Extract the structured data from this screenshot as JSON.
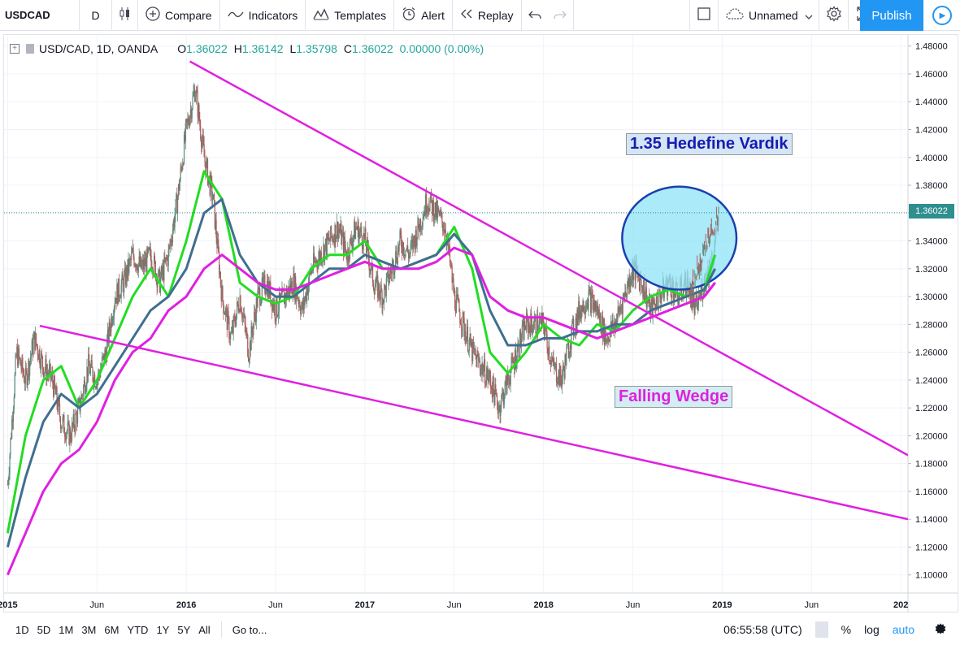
{
  "toolbar": {
    "symbol": "USDCAD",
    "interval": "D",
    "compare": "Compare",
    "indicators": "Indicators",
    "templates": "Templates",
    "alert": "Alert",
    "replay": "Replay",
    "layout_name": "Unnamed",
    "publish": "Publish"
  },
  "legend": {
    "symbol": "USD/CAD, 1D, OANDA",
    "open_label": "O",
    "open": "1.36022",
    "high_label": "H",
    "high": "1.36142",
    "low_label": "L",
    "low": "1.35798",
    "close_label": "C",
    "close": "1.36022",
    "change": "0.00000 (0.00%)"
  },
  "price_label": "1.36022",
  "annotations": {
    "target": "1.35 Hedefine Vardık",
    "pattern": "Falling Wedge"
  },
  "bottom": {
    "ranges": [
      "1D",
      "5D",
      "1M",
      "3M",
      "6M",
      "YTD",
      "1Y",
      "5Y",
      "All"
    ],
    "goto": "Go to...",
    "time": "06:55:58 (UTC)",
    "percent": "%",
    "log": "log",
    "auto": "auto"
  },
  "colors": {
    "candle_up": "#5b8a7a",
    "candle_down": "#b05a5a",
    "ema_fast": "#22dd22",
    "ema_mid": "#3f6f8f",
    "ema_slow": "#e020e0",
    "trendline": "#e020e0",
    "circle_fill": "#8fe3f5",
    "circle_stroke": "#1a3fb0",
    "price_line": "#2f8f8f"
  },
  "chart_data": {
    "type": "line",
    "title": "USD/CAD, 1D, OANDA",
    "y_ticks": [
      "1.48000",
      "1.46000",
      "1.44000",
      "1.42000",
      "1.40000",
      "1.38000",
      "1.36000",
      "1.34000",
      "1.32000",
      "1.30000",
      "1.28000",
      "1.26000",
      "1.24000",
      "1.22000",
      "1.20000",
      "1.18000",
      "1.16000",
      "1.14000",
      "1.12000",
      "1.10000"
    ],
    "y_tick_values": [
      1.48,
      1.46,
      1.44,
      1.42,
      1.4,
      1.38,
      1.36,
      1.34,
      1.32,
      1.3,
      1.28,
      1.26,
      1.24,
      1.22,
      1.2,
      1.18,
      1.16,
      1.14,
      1.12,
      1.1
    ],
    "ylim": [
      1.087,
      1.488
    ],
    "x_ticks": [
      "2015",
      "Jun",
      "2016",
      "Jun",
      "2017",
      "Jun",
      "2018",
      "Jun",
      "2019",
      "Jun",
      "202"
    ],
    "x_tick_values": [
      2015.0,
      2015.5,
      2016.0,
      2016.5,
      2017.0,
      2017.5,
      2018.0,
      2018.5,
      2019.0,
      2019.5,
      2020.0
    ],
    "xlim": [
      2014.98,
      2020.04
    ],
    "last_price": 1.36022,
    "series": [
      {
        "name": "USD/CAD",
        "x": [
          2015.0,
          2015.05,
          2015.1,
          2015.15,
          2015.2,
          2015.25,
          2015.3,
          2015.35,
          2015.4,
          2015.45,
          2015.5,
          2015.55,
          2015.6,
          2015.65,
          2015.7,
          2015.75,
          2015.8,
          2015.85,
          2015.9,
          2015.95,
          2016.0,
          2016.05,
          2016.1,
          2016.15,
          2016.2,
          2016.25,
          2016.3,
          2016.35,
          2016.4,
          2016.45,
          2016.5,
          2016.55,
          2016.6,
          2016.65,
          2016.7,
          2016.75,
          2016.8,
          2016.85,
          2016.9,
          2016.95,
          2017.0,
          2017.05,
          2017.1,
          2017.15,
          2017.2,
          2017.25,
          2017.3,
          2017.35,
          2017.4,
          2017.45,
          2017.5,
          2017.55,
          2017.6,
          2017.65,
          2017.7,
          2017.75,
          2017.8,
          2017.85,
          2017.9,
          2017.95,
          2018.0,
          2018.05,
          2018.1,
          2018.15,
          2018.2,
          2018.25,
          2018.3,
          2018.35,
          2018.4,
          2018.45,
          2018.5,
          2018.55,
          2018.6,
          2018.65,
          2018.7,
          2018.75,
          2018.8,
          2018.85,
          2018.9,
          2018.95,
          2018.98
        ],
        "close": [
          1.165,
          1.26,
          1.24,
          1.27,
          1.25,
          1.24,
          1.21,
          1.2,
          1.22,
          1.25,
          1.24,
          1.26,
          1.3,
          1.31,
          1.33,
          1.32,
          1.33,
          1.31,
          1.33,
          1.37,
          1.42,
          1.45,
          1.4,
          1.37,
          1.3,
          1.27,
          1.3,
          1.26,
          1.3,
          1.31,
          1.29,
          1.3,
          1.31,
          1.29,
          1.32,
          1.33,
          1.34,
          1.35,
          1.33,
          1.35,
          1.34,
          1.31,
          1.3,
          1.32,
          1.34,
          1.33,
          1.35,
          1.37,
          1.36,
          1.35,
          1.3,
          1.28,
          1.26,
          1.25,
          1.24,
          1.22,
          1.24,
          1.26,
          1.28,
          1.28,
          1.28,
          1.25,
          1.24,
          1.27,
          1.29,
          1.3,
          1.29,
          1.27,
          1.28,
          1.3,
          1.32,
          1.31,
          1.29,
          1.3,
          1.31,
          1.3,
          1.31,
          1.29,
          1.31,
          1.33,
          1.36
        ]
      },
      {
        "name": "",
        "x": [
          2015.0,
          2015.1,
          2015.2,
          2015.3,
          2015.4,
          2015.5,
          2015.6,
          2015.7,
          2015.8,
          2015.9,
          2016.0,
          2016.1,
          2016.2,
          2016.3,
          2016.4,
          2016.5,
          2016.6,
          2016.7,
          2016.8,
          2016.9,
          2017.0,
          2017.1,
          2017.2,
          2017.3,
          2017.4,
          2017.5,
          2017.6,
          2017.7,
          2017.8,
          2017.9,
          2018.0,
          2018.1,
          2018.2,
          2018.3,
          2018.4,
          2018.5,
          2018.6,
          2018.7,
          2018.8,
          2018.9,
          2018.96
        ],
        "values": [
          1.13,
          1.2,
          1.24,
          1.25,
          1.22,
          1.24,
          1.27,
          1.3,
          1.32,
          1.3,
          1.34,
          1.39,
          1.37,
          1.31,
          1.3,
          1.295,
          1.3,
          1.32,
          1.33,
          1.33,
          1.34,
          1.32,
          1.32,
          1.325,
          1.33,
          1.35,
          1.32,
          1.26,
          1.245,
          1.26,
          1.28,
          1.27,
          1.265,
          1.28,
          1.275,
          1.29,
          1.3,
          1.305,
          1.3,
          1.305,
          1.33
        ]
      },
      {
        "name": "",
        "x": [
          2015.0,
          2015.1,
          2015.2,
          2015.3,
          2015.4,
          2015.5,
          2015.6,
          2015.7,
          2015.8,
          2015.9,
          2016.0,
          2016.1,
          2016.2,
          2016.3,
          2016.4,
          2016.5,
          2016.6,
          2016.7,
          2016.8,
          2016.9,
          2017.0,
          2017.1,
          2017.2,
          2017.3,
          2017.4,
          2017.5,
          2017.6,
          2017.7,
          2017.8,
          2017.9,
          2018.0,
          2018.1,
          2018.2,
          2018.3,
          2018.4,
          2018.5,
          2018.6,
          2018.7,
          2018.8,
          2018.9,
          2018.96
        ],
        "values": [
          1.12,
          1.17,
          1.21,
          1.23,
          1.22,
          1.23,
          1.25,
          1.27,
          1.29,
          1.3,
          1.32,
          1.36,
          1.37,
          1.33,
          1.31,
          1.3,
          1.3,
          1.31,
          1.32,
          1.32,
          1.33,
          1.325,
          1.32,
          1.325,
          1.33,
          1.345,
          1.33,
          1.29,
          1.265,
          1.265,
          1.27,
          1.27,
          1.275,
          1.275,
          1.28,
          1.28,
          1.29,
          1.295,
          1.3,
          1.305,
          1.32
        ]
      },
      {
        "name": "",
        "x": [
          2015.0,
          2015.1,
          2015.2,
          2015.3,
          2015.4,
          2015.5,
          2015.6,
          2015.7,
          2015.8,
          2015.9,
          2016.0,
          2016.1,
          2016.2,
          2016.3,
          2016.4,
          2016.5,
          2016.6,
          2016.7,
          2016.8,
          2016.9,
          2017.0,
          2017.1,
          2017.2,
          2017.3,
          2017.4,
          2017.5,
          2017.6,
          2017.7,
          2017.8,
          2017.9,
          2018.0,
          2018.1,
          2018.2,
          2018.3,
          2018.4,
          2018.5,
          2018.6,
          2018.7,
          2018.8,
          2018.9,
          2018.96
        ],
        "values": [
          1.1,
          1.13,
          1.16,
          1.18,
          1.19,
          1.21,
          1.24,
          1.26,
          1.27,
          1.29,
          1.3,
          1.32,
          1.33,
          1.32,
          1.31,
          1.305,
          1.305,
          1.31,
          1.315,
          1.32,
          1.325,
          1.32,
          1.32,
          1.32,
          1.325,
          1.335,
          1.33,
          1.3,
          1.29,
          1.285,
          1.285,
          1.28,
          1.275,
          1.27,
          1.275,
          1.28,
          1.285,
          1.29,
          1.295,
          1.3,
          1.31
        ]
      }
    ],
    "trendlines": [
      {
        "x": [
          2016.02,
          2020.04
        ],
        "y": [
          1.469,
          1.186
        ]
      },
      {
        "x": [
          2015.18,
          2020.04
        ],
        "y": [
          1.279,
          1.14
        ]
      }
    ],
    "circle": {
      "cx": 2018.76,
      "cy": 1.342,
      "rx_years": 0.32,
      "ry": 0.037
    },
    "grid": true,
    "legend": "top-left"
  }
}
